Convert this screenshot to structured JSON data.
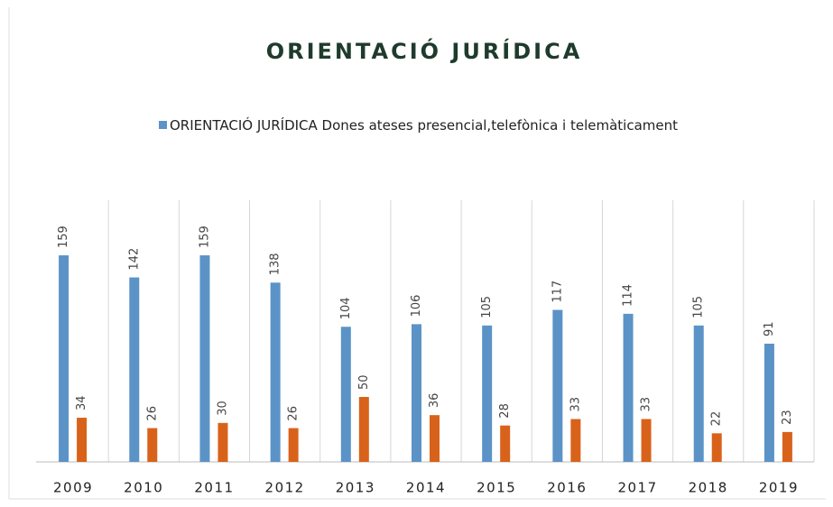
{
  "chart_data": {
    "type": "bar",
    "title": "ORIENTACIÓ JURÍDICA",
    "categories": [
      "2009",
      "2010",
      "2011",
      "2012",
      "2013",
      "2014",
      "2015",
      "2016",
      "2017",
      "2018",
      "2019"
    ],
    "series": [
      {
        "name": "ORIENTACIÓ JURÍDICA Dones ateses presencial,telefònica i telemàticament",
        "color": "#5b93c7",
        "values": [
          159,
          142,
          159,
          138,
          104,
          106,
          105,
          117,
          114,
          105,
          91
        ]
      },
      {
        "color": "#d9621b",
        "values": [
          34,
          26,
          30,
          26,
          50,
          36,
          28,
          33,
          33,
          22,
          23
        ]
      }
    ],
    "ylim": [
      0,
      200
    ]
  }
}
